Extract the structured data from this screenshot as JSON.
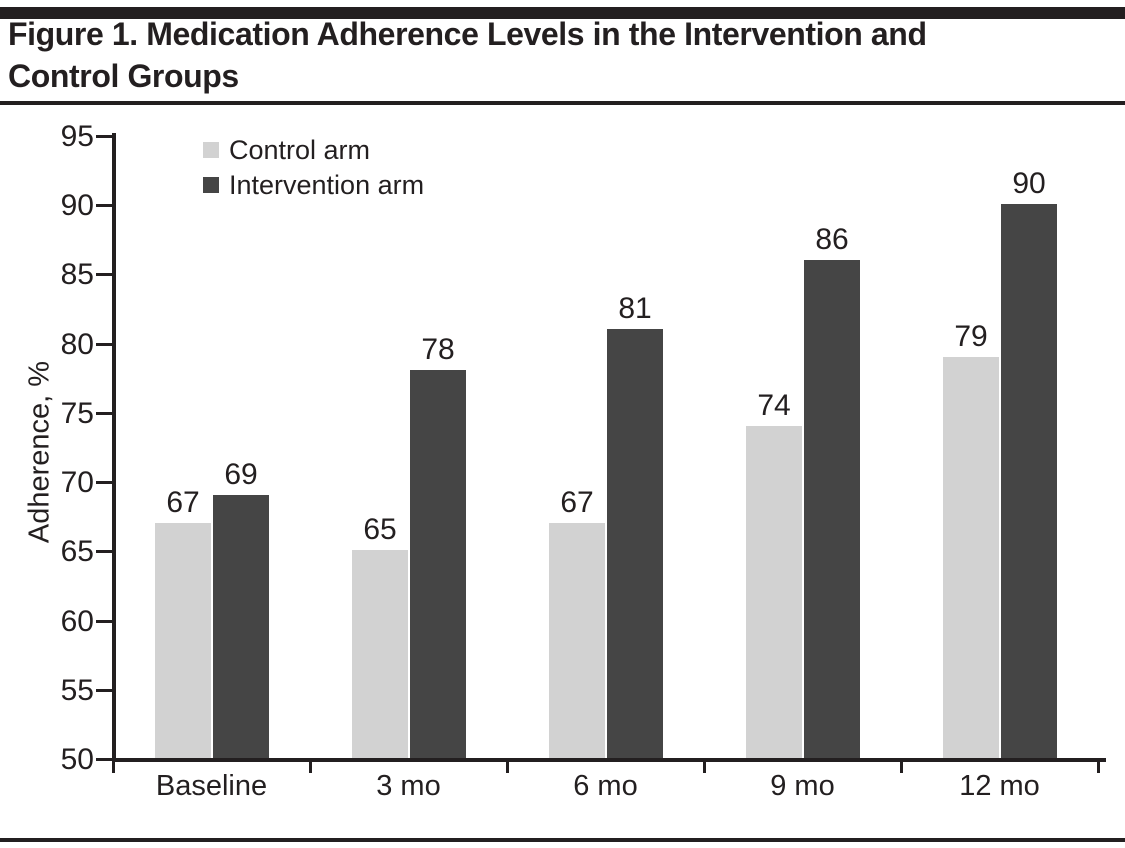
{
  "figure": {
    "title_lines": [
      "Figure 1. Medication Adherence Levels in the Intervention and",
      "Control Groups"
    ]
  },
  "colors": {
    "control_bar": "#d2d2d2",
    "intervention_bar": "#454545",
    "text": "#231f20",
    "axis": "#231f20",
    "rule": "#231f20",
    "background": "#ffffff"
  },
  "chart_data": {
    "type": "bar",
    "title": "Figure 1. Medication Adherence Levels in the Intervention and Control Groups",
    "categories": [
      "Baseline",
      "3 mo",
      "6 mo",
      "9 mo",
      "12 mo"
    ],
    "series": [
      {
        "name": "Control arm",
        "color": "#d2d2d2",
        "values": [
          67,
          65,
          67,
          74,
          79
        ]
      },
      {
        "name": "Intervention arm",
        "color": "#454545",
        "values": [
          69,
          78,
          81,
          86,
          90
        ]
      }
    ],
    "xlabel": "",
    "ylabel": "Adherence, %",
    "ylim": [
      50,
      95
    ],
    "yticks": [
      50,
      55,
      60,
      65,
      70,
      75,
      80,
      85,
      90,
      95
    ],
    "bar_value_labels": true,
    "grid": false,
    "legend_position": "top-left"
  }
}
